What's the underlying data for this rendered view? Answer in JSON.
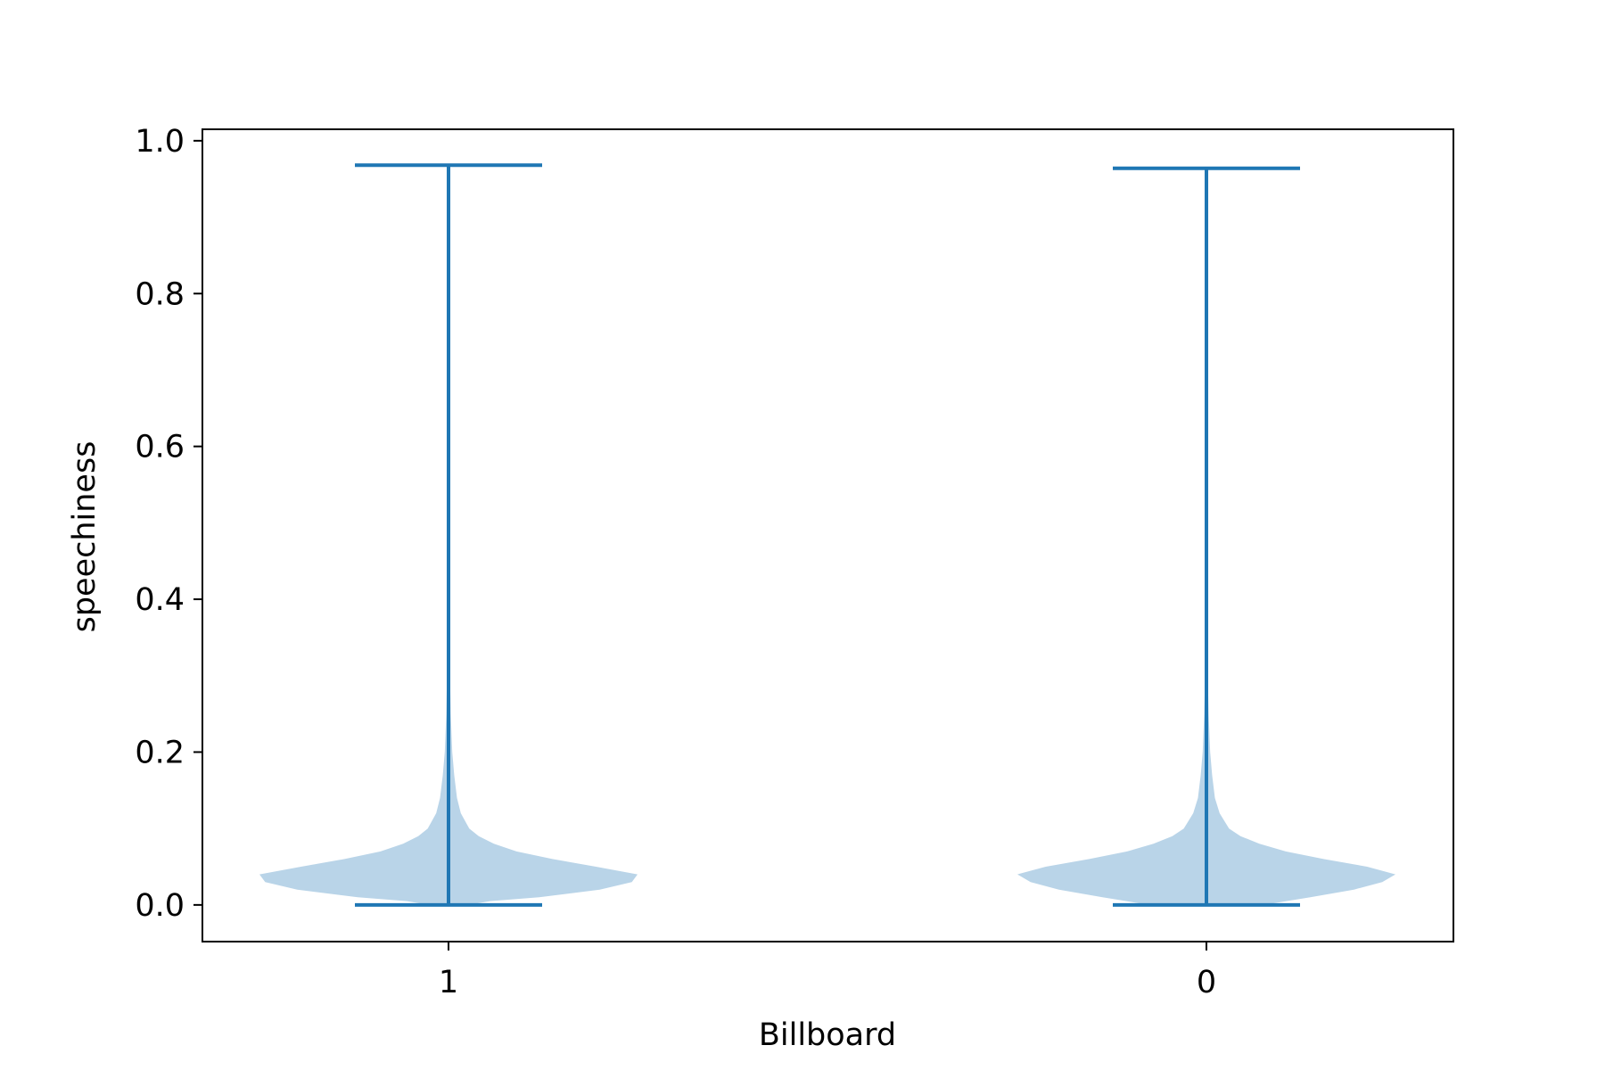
{
  "chart_data": {
    "type": "violin",
    "xlabel": "Billboard",
    "ylabel": "speechiness",
    "ylim": [
      -0.048,
      1.015
    ],
    "yticks": [
      "0.0",
      "0.2",
      "0.4",
      "0.6",
      "0.8",
      "1.0"
    ],
    "grid": false,
    "colors": {
      "body": "#b9d4e8",
      "lines": "#1f77b4",
      "axes": "#000000"
    },
    "categories": [
      "1",
      "0"
    ],
    "violins": [
      {
        "category": "1",
        "min": 0.0,
        "max": 0.968,
        "density": [
          [
            0.0,
            0.1
          ],
          [
            0.005,
            0.22
          ],
          [
            0.01,
            0.48
          ],
          [
            0.02,
            0.8
          ],
          [
            0.03,
            0.97
          ],
          [
            0.04,
            1.0
          ],
          [
            0.05,
            0.78
          ],
          [
            0.06,
            0.55
          ],
          [
            0.07,
            0.36
          ],
          [
            0.08,
            0.24
          ],
          [
            0.09,
            0.16
          ],
          [
            0.1,
            0.11
          ],
          [
            0.12,
            0.065
          ],
          [
            0.14,
            0.045
          ],
          [
            0.17,
            0.03
          ],
          [
            0.2,
            0.02
          ],
          [
            0.25,
            0.012
          ],
          [
            0.3,
            0.008
          ],
          [
            0.35,
            0.004
          ],
          [
            0.4,
            0.002
          ],
          [
            0.5,
            0.001
          ],
          [
            0.968,
            0.0
          ]
        ]
      },
      {
        "category": "0",
        "min": 0.0,
        "max": 0.964,
        "density": [
          [
            0.0,
            0.3
          ],
          [
            0.01,
            0.55
          ],
          [
            0.02,
            0.78
          ],
          [
            0.03,
            0.93
          ],
          [
            0.04,
            1.0
          ],
          [
            0.05,
            0.85
          ],
          [
            0.06,
            0.62
          ],
          [
            0.07,
            0.42
          ],
          [
            0.08,
            0.28
          ],
          [
            0.09,
            0.18
          ],
          [
            0.1,
            0.12
          ],
          [
            0.12,
            0.07
          ],
          [
            0.14,
            0.045
          ],
          [
            0.17,
            0.03
          ],
          [
            0.2,
            0.02
          ],
          [
            0.25,
            0.012
          ],
          [
            0.3,
            0.007
          ],
          [
            0.35,
            0.004
          ],
          [
            0.4,
            0.002
          ],
          [
            0.5,
            0.001
          ],
          [
            0.964,
            0.0
          ]
        ]
      }
    ]
  }
}
